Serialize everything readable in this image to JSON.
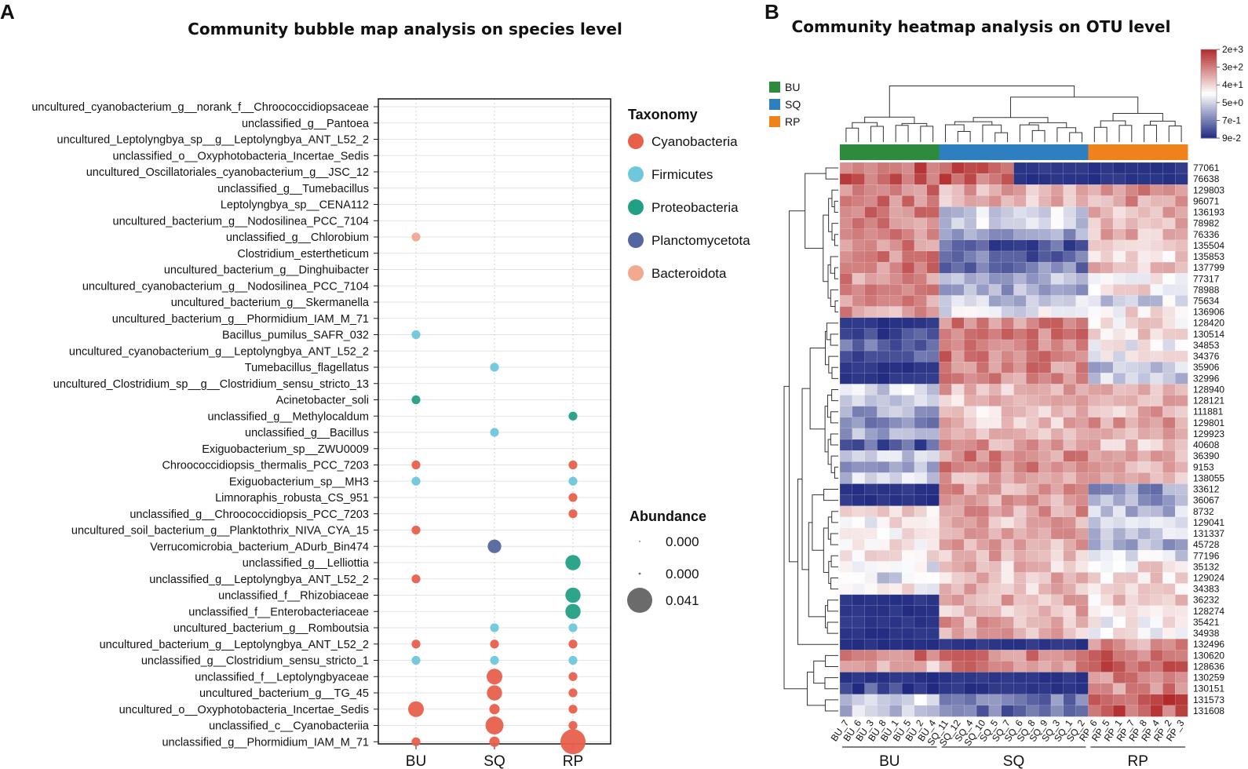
{
  "panels": {
    "a_letter": "A",
    "b_letter": "B"
  },
  "chart_data": [
    {
      "type": "scatter",
      "title": "Community bubble map analysis on species level",
      "xlabel": "",
      "ylabel": "",
      "categories": [
        "BU",
        "SQ",
        "RP"
      ],
      "species": [
        "uncultured_cyanobacterium_g__norank_f__Chroococcidiopsaceae",
        "unclassified_g__Pantoea",
        "uncultured_Leptolyngbya_sp__g__Leptolyngbya_ANT_L52_2",
        "unclassified_o__Oxyphotobacteria_Incertae_Sedis",
        "uncultured_Oscillatoriales_cyanobacterium_g__JSC_12",
        "unclassified_g__Tumebacillus",
        "Leptolyngbya_sp__CENA112",
        "uncultured_bacterium_g__Nodosilinea_PCC_7104",
        "unclassified_g__Chlorobium",
        "Clostridium_estertheticum",
        "uncultured_bacterium_g__Dinghuibacter",
        "uncultured_cyanobacterium_g__Nodosilinea_PCC_7104",
        "uncultured_bacterium_g__Skermanella",
        "uncultured_bacterium_g__Phormidium_IAM_M_71",
        "Bacillus_pumilus_SAFR_032",
        "uncultured_cyanobacterium_g__Leptolyngbya_ANT_L52_2",
        "Tumebacillus_flagellatus",
        "uncultured_Clostridium_sp__g__Clostridium_sensu_stricto_13",
        "Acinetobacter_soli",
        "unclassified_g__Methylocaldum",
        "unclassified_g__Bacillus",
        "Exiguobacterium_sp__ZWU0009",
        "Chroococcidiopsis_thermalis_PCC_7203",
        "Exiguobacterium_sp__MH3",
        "Limnoraphis_robusta_CS_951",
        "unclassified_g__Chroococcidiopsis_PCC_7203",
        "uncultured_soil_bacterium_g__Planktothrix_NIVA_CYA_15",
        "Verrucomicrobia_bacterium_ADurb_Bin474",
        "unclassified_g__Lelliottia",
        "unclassified_g__Leptolyngbya_ANT_L52_2",
        "unclassified_f__Rhizobiaceae",
        "unclassified_f__Enterobacteriaceae",
        "uncultured_bacterium_g__Romboutsia",
        "uncultured_bacterium_g__Leptolyngbya_ANT_L52_2",
        "unclassified_g__Clostridium_sensu_stricto_1",
        "unclassified_f__Leptolyngbyaceae",
        "uncultured_bacterium_g__TG_45",
        "uncultured_o__Oxyphotobacteria_Incertae_Sedis",
        "unclassified_c__Cyanobacteriia",
        "unclassified_g__Phormidium_IAM_M_71"
      ],
      "bubbles": [
        {
          "s": 8,
          "x": "BU",
          "size": 0.005,
          "taxon": "Bacteroidota"
        },
        {
          "s": 14,
          "x": "BU",
          "size": 0.005,
          "taxon": "Firmicutes"
        },
        {
          "s": 16,
          "x": "SQ",
          "size": 0.005,
          "taxon": "Firmicutes"
        },
        {
          "s": 18,
          "x": "BU",
          "size": 0.005,
          "taxon": "Proteobacteria"
        },
        {
          "s": 19,
          "x": "RP",
          "size": 0.005,
          "taxon": "Proteobacteria"
        },
        {
          "s": 20,
          "x": "SQ",
          "size": 0.005,
          "taxon": "Firmicutes"
        },
        {
          "s": 22,
          "x": "BU",
          "size": 0.005,
          "taxon": "Cyanobacteria"
        },
        {
          "s": 22,
          "x": "RP",
          "size": 0.005,
          "taxon": "Cyanobacteria"
        },
        {
          "s": 23,
          "x": "BU",
          "size": 0.005,
          "taxon": "Firmicutes"
        },
        {
          "s": 23,
          "x": "RP",
          "size": 0.005,
          "taxon": "Firmicutes"
        },
        {
          "s": 24,
          "x": "RP",
          "size": 0.005,
          "taxon": "Cyanobacteria"
        },
        {
          "s": 25,
          "x": "RP",
          "size": 0.005,
          "taxon": "Cyanobacteria"
        },
        {
          "s": 26,
          "x": "BU",
          "size": 0.005,
          "taxon": "Cyanobacteria"
        },
        {
          "s": 27,
          "x": "SQ",
          "size": 0.012,
          "taxon": "Planctomycetota"
        },
        {
          "s": 28,
          "x": "RP",
          "size": 0.015,
          "taxon": "Proteobacteria"
        },
        {
          "s": 29,
          "x": "BU",
          "size": 0.005,
          "taxon": "Cyanobacteria"
        },
        {
          "s": 30,
          "x": "RP",
          "size": 0.015,
          "taxon": "Proteobacteria"
        },
        {
          "s": 31,
          "x": "RP",
          "size": 0.015,
          "taxon": "Proteobacteria"
        },
        {
          "s": 32,
          "x": "SQ",
          "size": 0.005,
          "taxon": "Firmicutes"
        },
        {
          "s": 32,
          "x": "RP",
          "size": 0.005,
          "taxon": "Firmicutes"
        },
        {
          "s": 33,
          "x": "BU",
          "size": 0.005,
          "taxon": "Cyanobacteria"
        },
        {
          "s": 33,
          "x": "SQ",
          "size": 0.005,
          "taxon": "Cyanobacteria"
        },
        {
          "s": 33,
          "x": "RP",
          "size": 0.005,
          "taxon": "Cyanobacteria"
        },
        {
          "s": 34,
          "x": "BU",
          "size": 0.005,
          "taxon": "Firmicutes"
        },
        {
          "s": 34,
          "x": "SQ",
          "size": 0.005,
          "taxon": "Firmicutes"
        },
        {
          "s": 34,
          "x": "RP",
          "size": 0.005,
          "taxon": "Firmicutes"
        },
        {
          "s": 35,
          "x": "SQ",
          "size": 0.016,
          "taxon": "Cyanobacteria"
        },
        {
          "s": 35,
          "x": "RP",
          "size": 0.005,
          "taxon": "Cyanobacteria"
        },
        {
          "s": 36,
          "x": "SQ",
          "size": 0.015,
          "taxon": "Cyanobacteria"
        },
        {
          "s": 36,
          "x": "RP",
          "size": 0.005,
          "taxon": "Cyanobacteria"
        },
        {
          "s": 37,
          "x": "BU",
          "size": 0.016,
          "taxon": "Cyanobacteria"
        },
        {
          "s": 37,
          "x": "SQ",
          "size": 0.007,
          "taxon": "Cyanobacteria"
        },
        {
          "s": 37,
          "x": "RP",
          "size": 0.005,
          "taxon": "Cyanobacteria"
        },
        {
          "s": 38,
          "x": "SQ",
          "size": 0.021,
          "taxon": "Cyanobacteria"
        },
        {
          "s": 38,
          "x": "RP",
          "size": 0.005,
          "taxon": "Cyanobacteria"
        },
        {
          "s": 39,
          "x": "BU",
          "size": 0.005,
          "taxon": "Cyanobacteria"
        },
        {
          "s": 39,
          "x": "SQ",
          "size": 0.007,
          "taxon": "Cyanobacteria"
        },
        {
          "s": 39,
          "x": "RP",
          "size": 0.041,
          "taxon": "Cyanobacteria"
        }
      ],
      "legend_taxonomy": {
        "title": "Taxonomy",
        "items": [
          {
            "name": "Cyanobacteria",
            "color": "#e8604c"
          },
          {
            "name": "Firmicutes",
            "color": "#6fc7dc"
          },
          {
            "name": "Proteobacteria",
            "color": "#21a085"
          },
          {
            "name": "Planctomycetota",
            "color": "#5466a0"
          },
          {
            "name": "Bacteroidota",
            "color": "#f2a98e"
          }
        ]
      },
      "legend_abundance": {
        "title": "Abundance",
        "items": [
          {
            "label": "0.000",
            "size": 0.0004
          },
          {
            "label": "0.000",
            "size": 0.0012
          },
          {
            "label": "0.041",
            "size": 0.041
          }
        ]
      }
    },
    {
      "type": "heatmap",
      "title": "Community heatmap analysis on OTU level",
      "samples": [
        "BU_7",
        "BU_6",
        "BU_3",
        "BU_8",
        "BU_1",
        "BU_5",
        "BU_2",
        "BU_4",
        "SQ_11",
        "SQ_12",
        "SQ_4",
        "SQ_10",
        "SQ_5",
        "SQ_7",
        "SQ_6",
        "SQ_8",
        "SQ_9",
        "SQ_3",
        "SQ_1",
        "SQ_2",
        "RP_6",
        "RP_5",
        "RP_1",
        "RP_7",
        "RP_8",
        "RP_4",
        "RP_2",
        "RP_3"
      ],
      "sample_groups": [
        "BU",
        "BU",
        "BU",
        "BU",
        "BU",
        "BU",
        "BU",
        "BU",
        "SQ",
        "SQ",
        "SQ",
        "SQ",
        "SQ",
        "SQ",
        "SQ",
        "SQ",
        "SQ",
        "SQ",
        "SQ",
        "SQ",
        "RP",
        "RP",
        "RP",
        "RP",
        "RP",
        "RP",
        "RP",
        "RP"
      ],
      "groups": [
        {
          "name": "BU",
          "color": "#2e8b3e"
        },
        {
          "name": "SQ",
          "color": "#2e7fc0"
        },
        {
          "name": "RP",
          "color": "#f0821e"
        }
      ],
      "otus": [
        "77061",
        "76638",
        "129803",
        "96071",
        "136193",
        "78982",
        "76336",
        "135504",
        "135853",
        "137799",
        "77317",
        "78988",
        "75634",
        "136906",
        "128420",
        "130514",
        "34853",
        "34376",
        "35906",
        "32996",
        "128940",
        "128121",
        "111881",
        "129801",
        "129923",
        "40608",
        "36390",
        "9153",
        "138055",
        "33612",
        "36067",
        "8732",
        "129041",
        "131337",
        "45728",
        "77196",
        "35132",
        "129024",
        "34383",
        "36232",
        "128274",
        "35421",
        "34938",
        "132496",
        "130620",
        "128636",
        "130259",
        "130151",
        "131573",
        "131608"
      ],
      "row_profiles": [
        [
          0.74,
          0.74,
          0.74,
          -0.93,
          -0.93,
          -0.93
        ],
        [
          0.74,
          0.74,
          0.74,
          -0.93,
          -0.93,
          -0.93
        ],
        [
          0.62,
          0.62,
          0.35,
          0.3,
          0.45,
          0.5
        ],
        [
          0.62,
          0.62,
          0.3,
          0.3,
          0.45,
          0.45
        ],
        [
          0.6,
          0.6,
          -0.2,
          -0.2,
          0.35,
          0.35
        ],
        [
          0.55,
          0.55,
          -0.2,
          -0.2,
          0.4,
          0.4
        ],
        [
          0.5,
          0.5,
          -0.45,
          -0.45,
          0.35,
          0.35
        ],
        [
          0.55,
          0.55,
          -0.75,
          -0.75,
          0.3,
          0.3
        ],
        [
          0.6,
          0.6,
          -0.7,
          -0.7,
          0.2,
          0.2
        ],
        [
          0.58,
          0.58,
          -0.6,
          -0.6,
          0.3,
          0.3
        ],
        [
          0.5,
          0.5,
          -0.35,
          -0.35,
          0.1,
          0.1
        ],
        [
          0.5,
          0.5,
          -0.4,
          -0.4,
          0.1,
          0.1
        ],
        [
          0.5,
          0.5,
          -0.25,
          -0.25,
          -0.2,
          -0.2
        ],
        [
          0.45,
          0.45,
          -0.1,
          -0.1,
          0.1,
          0.1
        ],
        [
          -0.9,
          -0.9,
          0.55,
          0.55,
          0.15,
          0.15
        ],
        [
          -0.85,
          -0.85,
          0.55,
          0.55,
          0.2,
          0.2
        ],
        [
          -0.75,
          -0.75,
          0.6,
          0.6,
          0.0,
          0.0
        ],
        [
          -0.8,
          -0.8,
          0.6,
          0.6,
          0.0,
          0.0
        ],
        [
          -0.9,
          -0.9,
          0.55,
          0.55,
          -0.3,
          -0.3
        ],
        [
          -0.9,
          -0.9,
          0.55,
          0.55,
          -0.2,
          -0.2
        ],
        [
          -0.2,
          -0.2,
          0.35,
          0.35,
          0.4,
          0.4
        ],
        [
          -0.3,
          -0.3,
          0.3,
          0.3,
          0.35,
          0.35
        ],
        [
          -0.4,
          -0.4,
          0.25,
          0.25,
          0.35,
          0.35
        ],
        [
          -0.5,
          -0.5,
          0.3,
          0.3,
          0.4,
          0.4
        ],
        [
          -0.4,
          -0.4,
          0.35,
          0.35,
          0.35,
          0.35
        ],
        [
          -0.75,
          -0.75,
          0.45,
          0.45,
          0.3,
          0.3
        ],
        [
          -0.3,
          -0.3,
          0.55,
          0.55,
          0.4,
          0.4
        ],
        [
          -0.35,
          -0.35,
          0.55,
          0.55,
          0.35,
          0.35
        ],
        [
          -0.25,
          -0.25,
          0.4,
          0.4,
          0.35,
          0.35
        ],
        [
          -0.95,
          -0.95,
          0.45,
          0.45,
          -0.5,
          -0.5
        ],
        [
          -0.95,
          -0.95,
          0.45,
          0.45,
          -0.4,
          -0.4
        ],
        [
          0.15,
          0.15,
          0.45,
          0.45,
          -0.3,
          -0.3
        ],
        [
          0.05,
          0.05,
          0.35,
          0.35,
          -0.1,
          -0.1
        ],
        [
          0.15,
          0.15,
          0.4,
          0.4,
          -0.25,
          -0.25
        ],
        [
          0.1,
          0.1,
          0.35,
          0.35,
          -0.35,
          -0.35
        ],
        [
          0.15,
          0.15,
          0.35,
          0.35,
          -0.2,
          -0.2
        ],
        [
          -0.15,
          -0.15,
          0.3,
          0.3,
          0.15,
          0.15
        ],
        [
          -0.2,
          -0.2,
          0.3,
          0.3,
          0.15,
          0.15
        ],
        [
          0.05,
          0.05,
          0.3,
          0.3,
          0.15,
          0.15
        ],
        [
          -0.95,
          -0.95,
          0.35,
          0.35,
          0.2,
          0.2
        ],
        [
          -0.95,
          -0.95,
          0.35,
          0.35,
          0.1,
          0.1
        ],
        [
          -0.95,
          -0.95,
          0.4,
          0.4,
          0.0,
          0.0
        ],
        [
          -0.95,
          -0.95,
          0.35,
          0.35,
          0.05,
          0.05
        ],
        [
          -0.95,
          -0.95,
          -0.95,
          -0.95,
          0.5,
          0.5
        ],
        [
          0.6,
          0.6,
          0.6,
          0.6,
          0.7,
          0.7
        ],
        [
          0.3,
          0.3,
          0.55,
          0.55,
          0.75,
          0.75
        ],
        [
          -0.9,
          -0.9,
          -0.95,
          -0.95,
          0.55,
          0.55
        ],
        [
          -0.85,
          -0.85,
          -0.9,
          -0.9,
          0.55,
          0.55
        ],
        [
          -0.2,
          -0.2,
          -0.6,
          -0.6,
          0.85,
          0.85
        ],
        [
          -0.3,
          -0.3,
          -0.65,
          -0.65,
          0.75,
          0.75
        ]
      ],
      "color_key": {
        "labels": [
          "2e+3",
          "3e+2",
          "4e+1",
          "5e+0",
          "7e-1",
          "9e-2"
        ],
        "high": "#b22a2a",
        "mid": "#ffffff",
        "low": "#1f2a80"
      },
      "group_labels": [
        "BU",
        "SQ",
        "RP"
      ]
    }
  ]
}
